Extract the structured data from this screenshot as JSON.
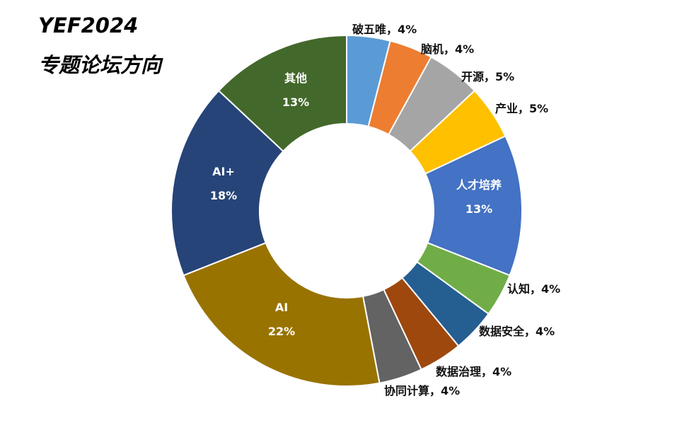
{
  "title": {
    "line1": "YEF2024",
    "line2": "专题论坛方向"
  },
  "chart_data": {
    "type": "pie",
    "donut": true,
    "categories": [
      "破五唯",
      "脑机",
      "开源",
      "产业",
      "人才培养",
      "认知",
      "数据安全",
      "数据治理",
      "协同计算",
      "AI",
      "AI+",
      "其他"
    ],
    "values": [
      4,
      4,
      5,
      5,
      13,
      4,
      4,
      4,
      4,
      22,
      18,
      13
    ],
    "unit": "%",
    "colors": [
      "#5B9BD5",
      "#ED7D31",
      "#A5A5A5",
      "#FFC000",
      "#4472C4",
      "#70AD47",
      "#255E91",
      "#9E480E",
      "#636363",
      "#997300",
      "#264478",
      "#43682B"
    ],
    "labels": [
      {
        "text": "破五唯，4%",
        "position": "outside"
      },
      {
        "text": "脑机，4%",
        "position": "outside"
      },
      {
        "text": "开源，5%",
        "position": "outside"
      },
      {
        "text": "产业，5%",
        "position": "outside"
      },
      {
        "name": "人才培养",
        "pct": "13%",
        "position": "inside"
      },
      {
        "text": "认知，4%",
        "position": "outside"
      },
      {
        "text": "数据安全，4%",
        "position": "outside"
      },
      {
        "text": "数据治理，4%",
        "position": "outside"
      },
      {
        "text": "协同计算，4%",
        "position": "outside"
      },
      {
        "name": "AI",
        "pct": "22%",
        "position": "inside"
      },
      {
        "name": "AI+",
        "pct": "18%",
        "position": "inside"
      },
      {
        "name": "其他",
        "pct": "13%",
        "position": "inside"
      }
    ],
    "start": "12 o'clock",
    "direction": "clockwise",
    "legend": "none"
  }
}
